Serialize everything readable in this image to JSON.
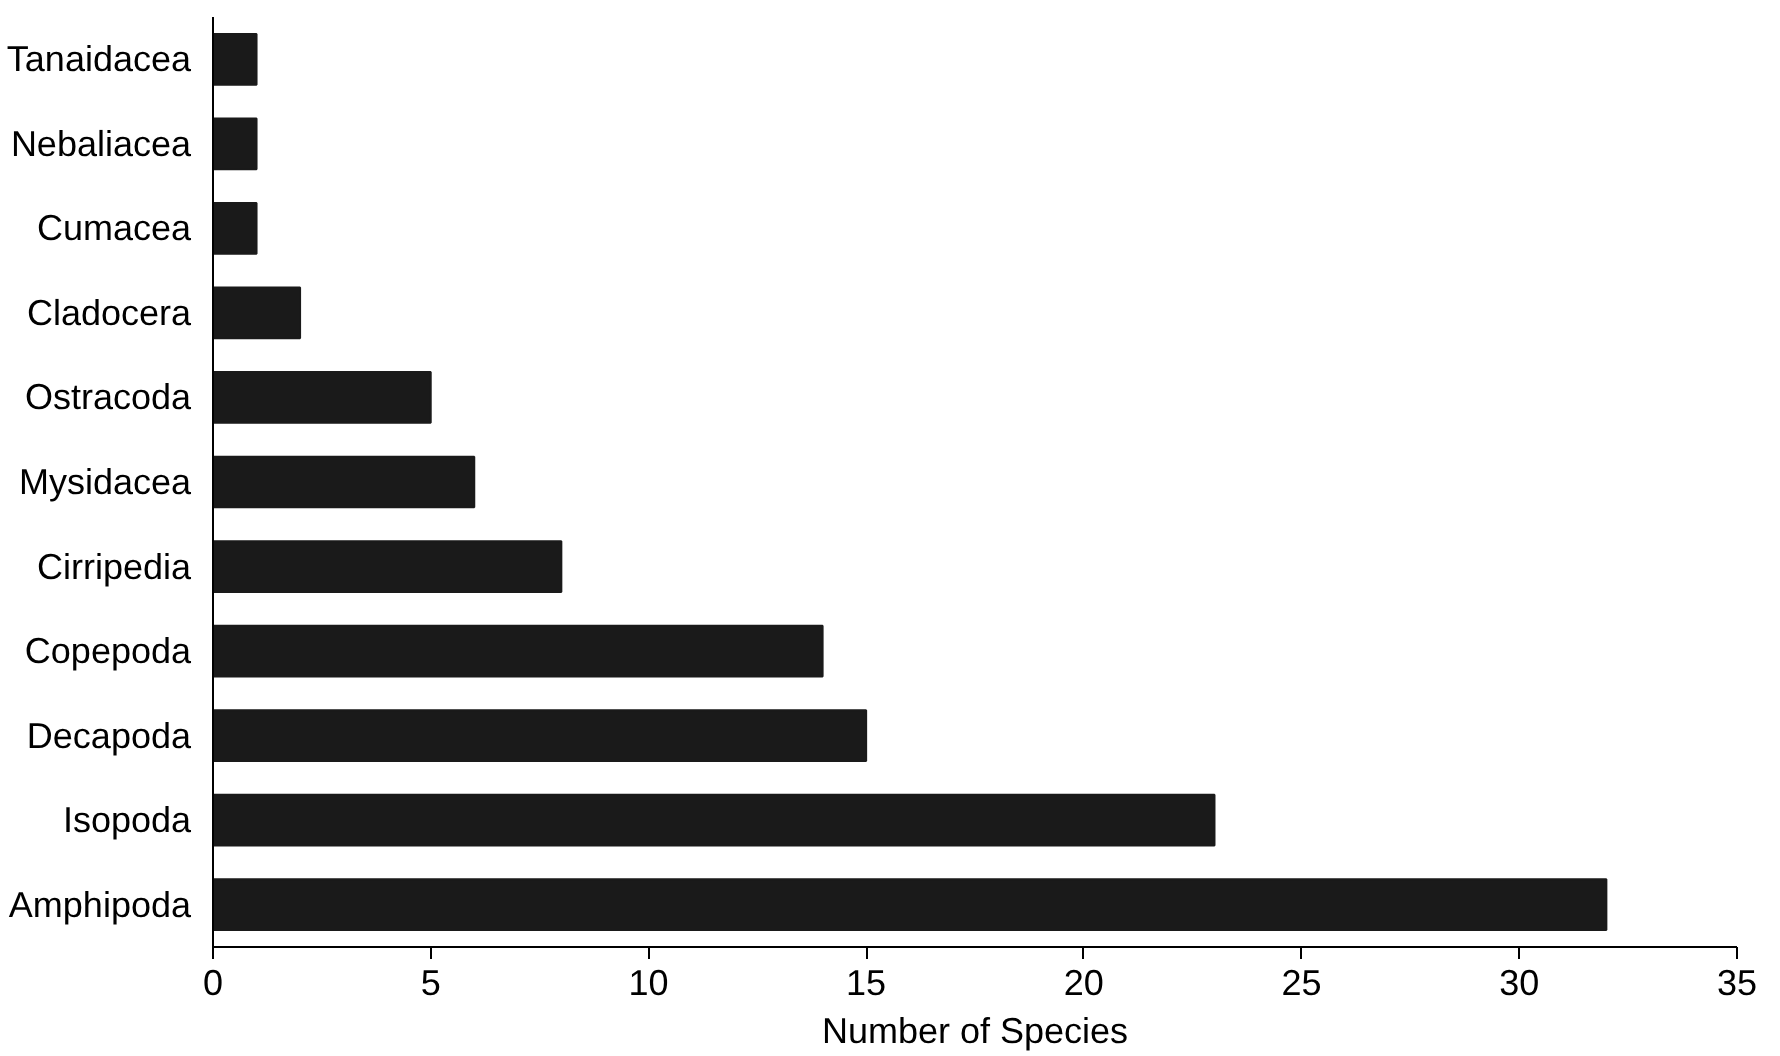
{
  "chart_data": {
    "type": "bar",
    "orientation": "horizontal",
    "xlabel": "Number of Species",
    "categories": [
      "Tanaidacea",
      "Nebaliacea",
      "Cumacea",
      "Cladocera",
      "Ostracoda",
      "Mysidacea",
      "Cirripedia",
      "Copepoda",
      "Decapoda",
      "Isopoda",
      "Amphipoda"
    ],
    "values": [
      1,
      1,
      1,
      2,
      5,
      6,
      8,
      14,
      15,
      23,
      32
    ],
    "color": "#1a1a1a",
    "xlim": [
      0,
      35
    ],
    "xticks": [
      0,
      5,
      10,
      15,
      20,
      25,
      30,
      35
    ],
    "grid": false
  }
}
